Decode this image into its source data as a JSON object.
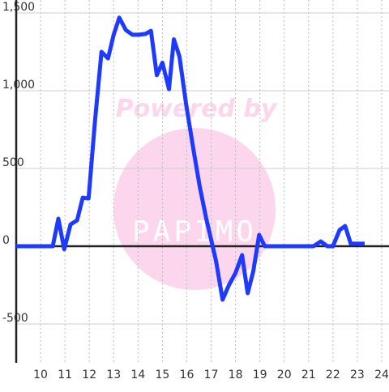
{
  "chart_data": {
    "type": "line",
    "watermark": {
      "line1": "Powered by",
      "line2": "PAPIMO"
    },
    "x": [
      9.0,
      10.5,
      10.73,
      10.97,
      11.23,
      11.5,
      11.73,
      11.97,
      12.23,
      12.5,
      12.77,
      13.0,
      13.23,
      13.5,
      13.77,
      14.03,
      14.3,
      14.53,
      14.77,
      15.0,
      15.27,
      15.47,
      15.7,
      15.97,
      16.27,
      16.53,
      16.8,
      17.0,
      17.2,
      17.47,
      17.73,
      18.0,
      18.27,
      18.5,
      18.73,
      18.97,
      19.2,
      21.2,
      21.5,
      21.77,
      22.0,
      22.27,
      22.5,
      22.73,
      23.3
    ],
    "series": [
      {
        "color": "#1f3aff",
        "values": [
          0,
          0,
          177,
          -20,
          140,
          167,
          312,
          307,
          800,
          1250,
          1208,
          1360,
          1470,
          1390,
          1360,
          1360,
          1365,
          1385,
          1100,
          1180,
          1010,
          1330,
          1220,
          917,
          625,
          385,
          177,
          42,
          -94,
          -344,
          -250,
          -172,
          -57,
          -302,
          -161,
          73,
          0,
          0,
          31,
          0,
          0,
          104,
          130,
          16,
          16
        ]
      }
    ],
    "xlim": [
      9,
      24.3
    ],
    "xticks": [
      10,
      11,
      12,
      13,
      14,
      15,
      16,
      17,
      18,
      19,
      20,
      21,
      22,
      23,
      24
    ],
    "ylim": [
      -750,
      1500
    ],
    "yticks": [
      -500,
      0,
      500,
      {
        "value": 1000,
        "label": "1,000"
      },
      {
        "value": 1500,
        "label": "1,500"
      }
    ],
    "grid": true
  }
}
